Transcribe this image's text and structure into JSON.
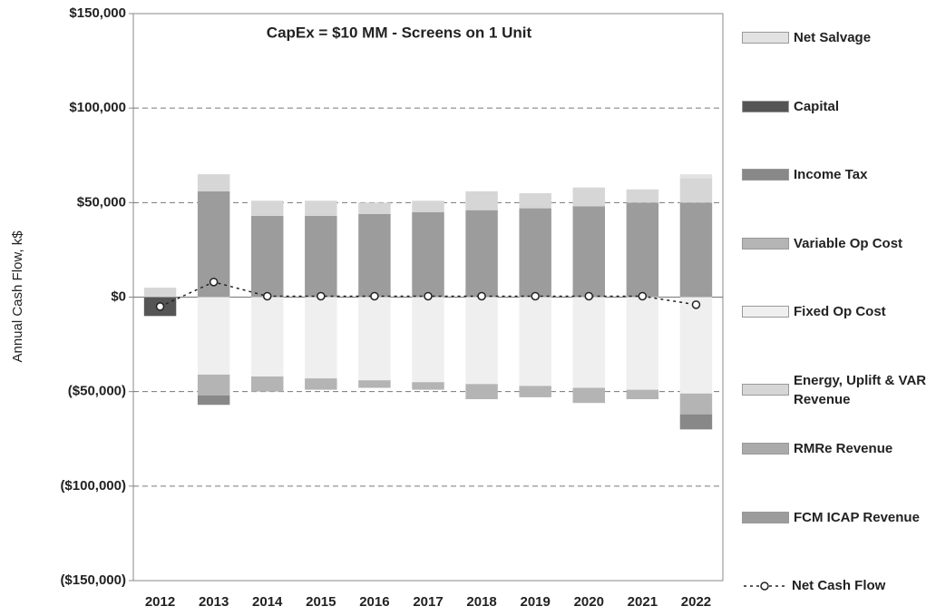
{
  "chart_data": {
    "type": "bar",
    "title": "CapEx = $10 MM - Screens on 1 Unit",
    "y_label": "Annual Cash Flow, k$",
    "categories": [
      "2012",
      "2013",
      "2014",
      "2015",
      "2016",
      "2017",
      "2018",
      "2019",
      "2020",
      "2021",
      "2022"
    ],
    "series": [
      {
        "name": "Net Salvage",
        "color": "#e2e2e2",
        "values": [
          0,
          0,
          0,
          0,
          0,
          0,
          0,
          0,
          0,
          0,
          2000
        ]
      },
      {
        "name": "Capital",
        "color": "#555555",
        "values": [
          -10000,
          0,
          0,
          0,
          0,
          0,
          0,
          0,
          0,
          0,
          0
        ]
      },
      {
        "name": "Income Tax",
        "color": "#888888",
        "values": [
          0,
          -5000,
          0,
          0,
          0,
          0,
          0,
          0,
          0,
          0,
          -8000
        ]
      },
      {
        "name": "Variable Op Cost",
        "color": "#b4b4b4",
        "values": [
          0,
          -11000,
          -8000,
          -6000,
          -4000,
          -4000,
          -8000,
          -6000,
          -8000,
          -5000,
          -11000
        ]
      },
      {
        "name": "Fixed Op Cost",
        "color": "#efefef",
        "values": [
          0,
          -41000,
          -42000,
          -43000,
          -44000,
          -45000,
          -46000,
          -47000,
          -48000,
          -49000,
          -51000
        ]
      },
      {
        "name": "Energy, Uplift & VAR Revenue",
        "color": "#d6d6d6",
        "values": [
          5000,
          9000,
          8000,
          8000,
          6000,
          6000,
          10000,
          8000,
          10000,
          7000,
          13000
        ]
      },
      {
        "name": "RMRe Revenue",
        "color": "#aaaaaa",
        "values": [
          0,
          0,
          0,
          0,
          0,
          0,
          0,
          0,
          0,
          0,
          0
        ]
      },
      {
        "name": "FCM ICAP Revenue",
        "color": "#9c9c9c",
        "values": [
          0,
          56000,
          43000,
          43000,
          44000,
          45000,
          46000,
          47000,
          48000,
          50000,
          50000
        ]
      }
    ],
    "line": {
      "name": "Net Cash Flow",
      "color": "#222222",
      "values": [
        -5000,
        8000,
        500,
        500,
        500,
        500,
        500,
        500,
        500,
        500,
        -4000
      ]
    },
    "ylim": [
      -150000,
      150000
    ],
    "yticks": [
      {
        "value": -150000,
        "label": "($150,000)"
      },
      {
        "value": -100000,
        "label": "($100,000)"
      },
      {
        "value": -50000,
        "label": "($50,000)"
      },
      {
        "value": 0,
        "label": "$0"
      },
      {
        "value": 50000,
        "label": "$50,000"
      },
      {
        "value": 100000,
        "label": "$100,000"
      },
      {
        "value": 150000,
        "label": "$150,000"
      }
    ],
    "grid": true
  }
}
